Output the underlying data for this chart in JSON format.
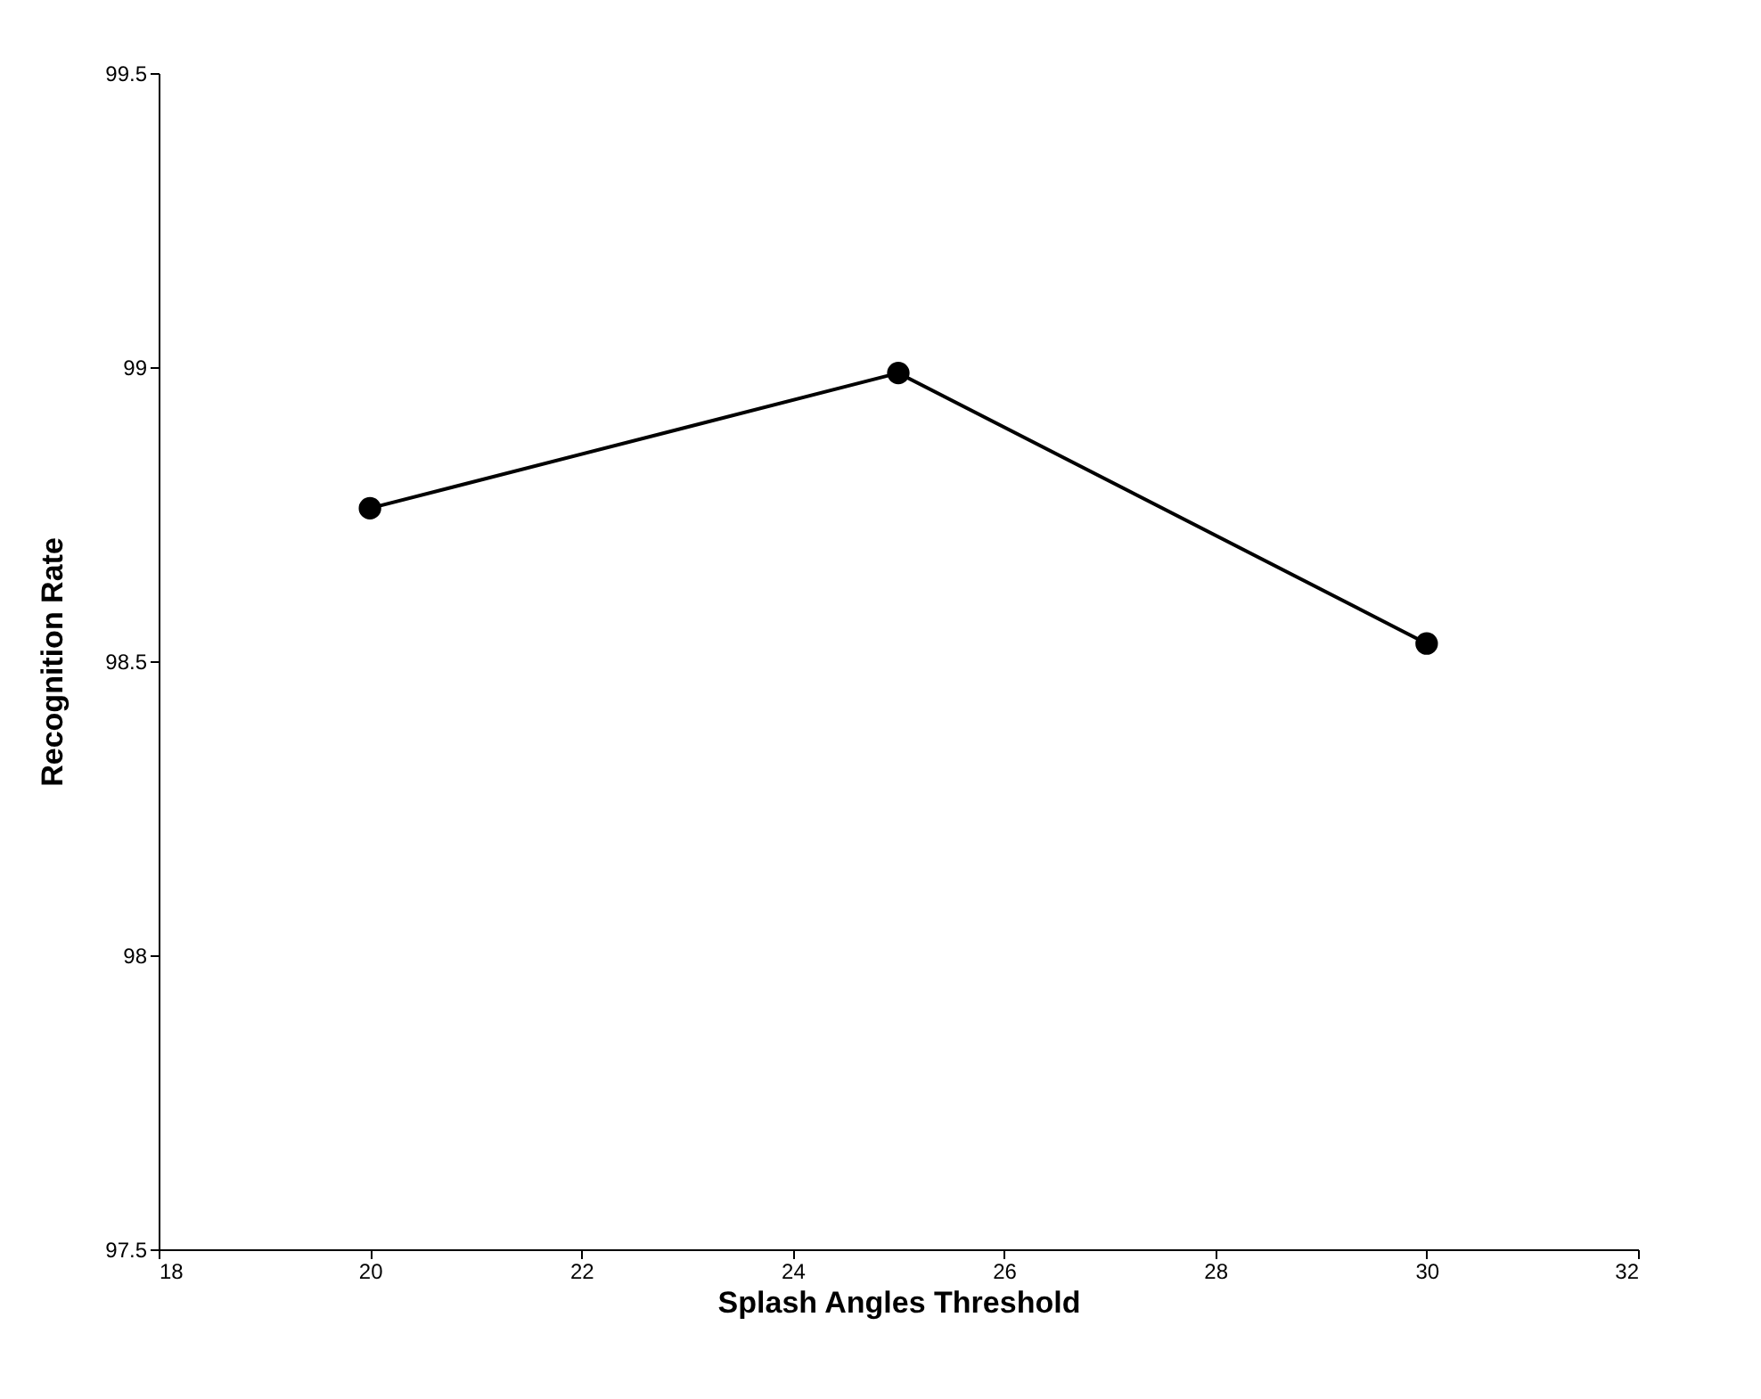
{
  "chart_data": {
    "type": "line",
    "xlabel": "Splash Angles Threshold",
    "ylabel": "Recognition Rate",
    "x": [
      20,
      25,
      30
    ],
    "series": [
      {
        "color": "#000000",
        "values": [
          98.76,
          98.99,
          98.53
        ]
      }
    ],
    "xlim": [
      18,
      32
    ],
    "xticks": [
      18,
      20,
      22,
      24,
      26,
      28,
      30,
      32
    ],
    "ylim": [
      97.5,
      99.5
    ],
    "yticks": [
      97.5,
      98,
      98.5,
      99,
      99.5
    ],
    "grid": false,
    "marker": "circle",
    "line_style": "solid"
  }
}
